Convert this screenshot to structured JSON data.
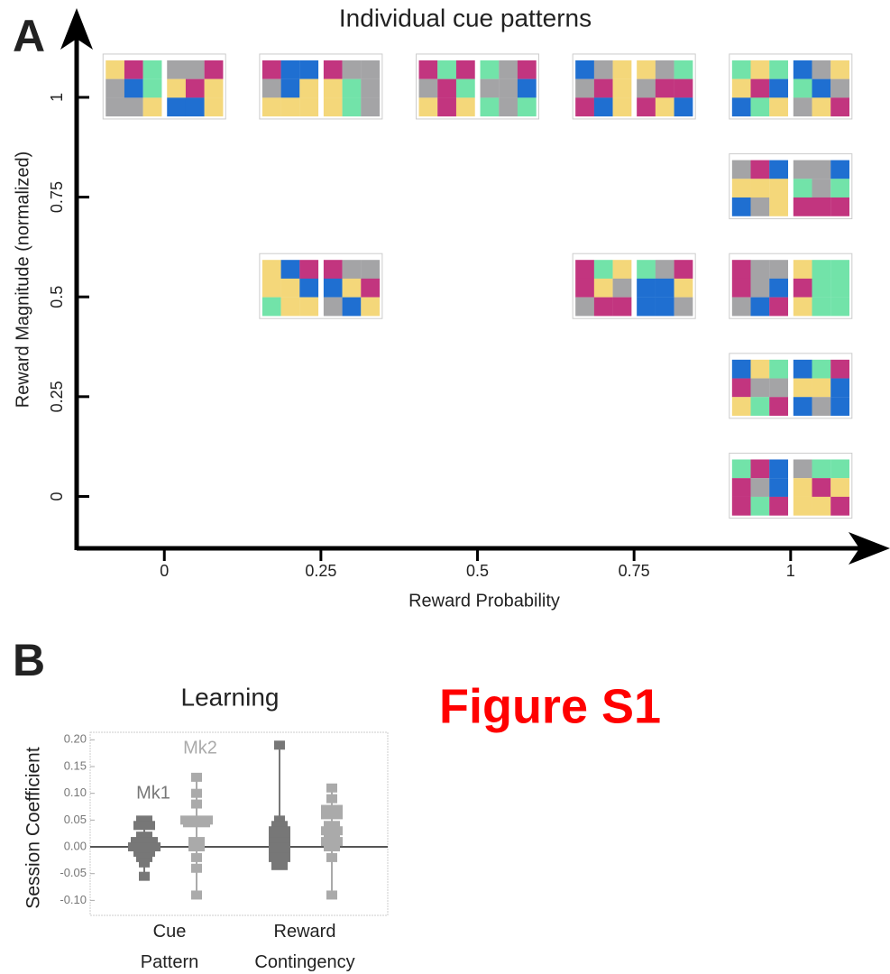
{
  "chart_data": [
    {
      "type": "pattern-map",
      "title": "Individual cue patterns",
      "panel": "A",
      "x_label": "Reward Probability",
      "y_label": "Reward Magnitude (normalized)",
      "x": [
        0,
        0.25,
        0.5,
        0.75,
        1,
        1,
        0.25,
        0.75,
        1,
        1,
        1
      ],
      "y": [
        1,
        1,
        1,
        1,
        1,
        0.75,
        0.5,
        0.5,
        0.5,
        0.25,
        0
      ],
      "xlim": [
        -0.14,
        1.15
      ],
      "ylim": [
        -0.13,
        1.21
      ],
      "xticks": [
        0,
        0.25,
        0.5,
        0.75,
        1
      ],
      "yticks": [
        0,
        0.25,
        0.5,
        0.75,
        1
      ]
    },
    {
      "type": "dot-strip",
      "title": "Learning",
      "panel": "B",
      "y_label": "Session Coefficient",
      "categories": [
        "Cue Pattern",
        "Reward Contingency"
      ],
      "ylim": [
        -0.128,
        0.214
      ],
      "yticks": [
        {
          "value": 0.2,
          "label": "0.20"
        },
        0.15,
        {
          "value": 0.1,
          "label": "0.10"
        },
        0.05,
        {
          "value": 0,
          "label": "0.00"
        },
        -0.05,
        {
          "value": -0.1,
          "label": "-0.10"
        }
      ],
      "series": [
        {
          "name": "Mk1",
          "color": "#777777",
          "values": [
            [
              0.05,
              0.04,
              0.02,
              0.01,
              0,
              -0.01,
              -0.02,
              -0.03,
              -0.055
            ],
            [
              0.19,
              0.05,
              0.04,
              0.03,
              0.02,
              0.01,
              0,
              -0.01,
              -0.02,
              -0.035
            ]
          ],
          "counts": [
            [
              2,
              3,
              2,
              4,
              5,
              3,
              2,
              1,
              1
            ],
            [
              1,
              1,
              2,
              3,
              3,
              3,
              3,
              3,
              3,
              2
            ]
          ]
        },
        {
          "name": "Mk2",
          "color": "#aaaaaa",
          "values": [
            [
              0.13,
              0.1,
              0.08,
              0.05,
              0.045,
              0.01,
              0,
              -0.02,
              -0.04,
              -0.09
            ],
            [
              0.11,
              0.09,
              0.07,
              0.06,
              0.04,
              0.03,
              0.02,
              0.01,
              0,
              -0.02,
              -0.09
            ]
          ],
          "counts": [
            [
              1,
              1,
              1,
              5,
              4,
              2,
              2,
              1,
              1,
              1
            ],
            [
              1,
              1,
              3,
              3,
              2,
              3,
              2,
              3,
              2,
              1,
              1
            ]
          ]
        }
      ]
    }
  ],
  "figure_label": "Figure S1"
}
